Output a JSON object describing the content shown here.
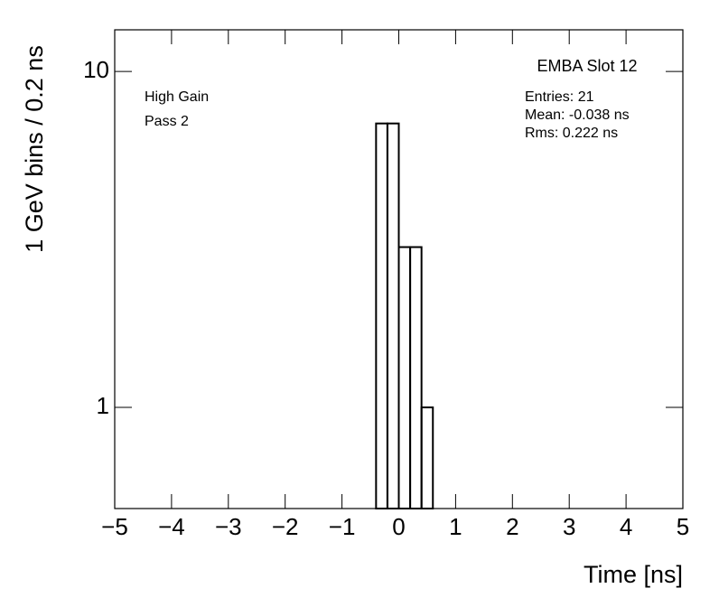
{
  "chart_data": {
    "type": "histogram",
    "title": "EMBA Slot 12",
    "annotations": [
      "High Gain",
      "Pass 2"
    ],
    "stats": [
      "Entries: 21",
      "Mean: -0.038 ns",
      "Rms: 0.222 ns"
    ],
    "x_label": "Time [ns]",
    "y_label": "1 GeV bins / 0.2 ns",
    "bins": [
      -0.4,
      -0.2,
      0,
      0.2,
      0.4,
      0.6
    ],
    "values": [
      7,
      7,
      3,
      3,
      1
    ],
    "color": "#000000",
    "xlim": [
      -5,
      5
    ],
    "ylim": [
      0.5,
      13.3
    ],
    "y_log": true,
    "xticks": [
      {
        "value": -5,
        "label": "−5"
      },
      {
        "value": -4,
        "label": "−4"
      },
      {
        "value": -3,
        "label": "−3"
      },
      {
        "value": -2,
        "label": "−2"
      },
      {
        "value": -1,
        "label": "−1"
      },
      0,
      1,
      2,
      3,
      4,
      5
    ],
    "yticks": [
      1,
      10
    ]
  }
}
